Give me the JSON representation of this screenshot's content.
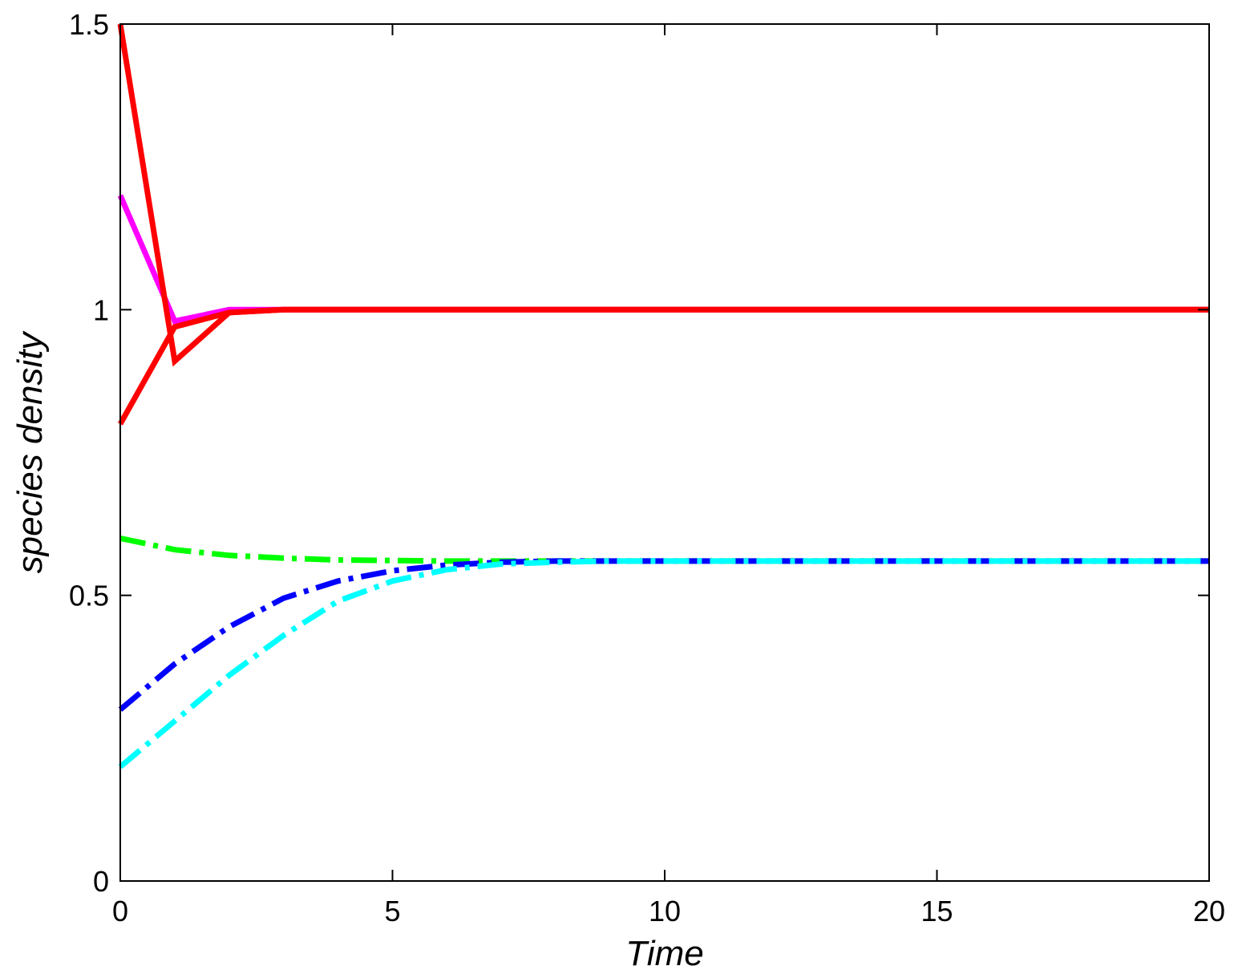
{
  "chart_data": {
    "type": "line",
    "title": "",
    "xlabel": "Time",
    "ylabel": "species density",
    "xlim": [
      0,
      20
    ],
    "ylim": [
      0,
      1.5
    ],
    "xticks": [
      0,
      5,
      10,
      15,
      20
    ],
    "xtick_labels": [
      "0",
      "5",
      "10",
      "15",
      "20"
    ],
    "yticks": [
      0,
      0.5,
      1,
      1.5
    ],
    "ytick_labels": [
      "0",
      "0.5",
      "1",
      "1.5"
    ],
    "grid": false,
    "legend": "none",
    "series": [
      {
        "color": "#ff00ff",
        "style": "solid",
        "x": [
          0,
          1,
          2,
          3,
          4,
          5,
          6,
          7,
          8,
          9,
          10,
          11,
          12,
          13,
          14,
          15,
          16,
          17,
          18,
          19,
          20
        ],
        "y": [
          1.2,
          0.98,
          1.0,
          1.0,
          1.0,
          1.0,
          1.0,
          1.0,
          1.0,
          1.0,
          1.0,
          1.0,
          1.0,
          1.0,
          1.0,
          1.0,
          1.0,
          1.0,
          1.0,
          1.0,
          1.0
        ]
      },
      {
        "color": "#ff0000",
        "style": "solid",
        "x": [
          0,
          1,
          2,
          3,
          4,
          5,
          6,
          7,
          8,
          9,
          10,
          11,
          12,
          13,
          14,
          15,
          16,
          17,
          18,
          19,
          20
        ],
        "y": [
          1.5,
          0.91,
          0.995,
          1.0,
          1.0,
          1.0,
          1.0,
          1.0,
          1.0,
          1.0,
          1.0,
          1.0,
          1.0,
          1.0,
          1.0,
          1.0,
          1.0,
          1.0,
          1.0,
          1.0,
          1.0
        ]
      },
      {
        "color": "#ff0000",
        "style": "solid",
        "x": [
          0,
          1,
          2,
          3,
          4,
          5,
          6,
          7,
          8,
          9,
          10,
          11,
          12,
          13,
          14,
          15,
          16,
          17,
          18,
          19,
          20
        ],
        "y": [
          0.8,
          0.97,
          0.995,
          1.0,
          1.0,
          1.0,
          1.0,
          1.0,
          1.0,
          1.0,
          1.0,
          1.0,
          1.0,
          1.0,
          1.0,
          1.0,
          1.0,
          1.0,
          1.0,
          1.0,
          1.0
        ]
      },
      {
        "color": "#00ff00",
        "style": "dashdot",
        "x": [
          0,
          1,
          2,
          3,
          4,
          5,
          6,
          7,
          8,
          9,
          10,
          11,
          12,
          13,
          14,
          15,
          16,
          17,
          18,
          19,
          20
        ],
        "y": [
          0.6,
          0.58,
          0.57,
          0.565,
          0.562,
          0.561,
          0.56,
          0.56,
          0.56,
          0.56,
          0.56,
          0.56,
          0.56,
          0.56,
          0.56,
          0.56,
          0.56,
          0.56,
          0.56,
          0.56,
          0.56
        ]
      },
      {
        "color": "#0000ff",
        "style": "dashdot",
        "x": [
          0,
          1,
          2,
          3,
          4,
          5,
          6,
          7,
          8,
          9,
          10,
          11,
          12,
          13,
          14,
          15,
          16,
          17,
          18,
          19,
          20
        ],
        "y": [
          0.3,
          0.38,
          0.445,
          0.495,
          0.525,
          0.543,
          0.553,
          0.558,
          0.56,
          0.56,
          0.56,
          0.56,
          0.56,
          0.56,
          0.56,
          0.56,
          0.56,
          0.56,
          0.56,
          0.56,
          0.56
        ]
      },
      {
        "color": "#00ffff",
        "style": "dashdot",
        "x": [
          0,
          1,
          2,
          3,
          4,
          5,
          6,
          7,
          8,
          9,
          10,
          11,
          12,
          13,
          14,
          15,
          16,
          17,
          18,
          19,
          20
        ],
        "y": [
          0.2,
          0.28,
          0.36,
          0.43,
          0.49,
          0.525,
          0.545,
          0.555,
          0.558,
          0.56,
          0.56,
          0.56,
          0.56,
          0.56,
          0.56,
          0.56,
          0.56,
          0.56,
          0.56,
          0.56,
          0.56
        ]
      }
    ]
  }
}
